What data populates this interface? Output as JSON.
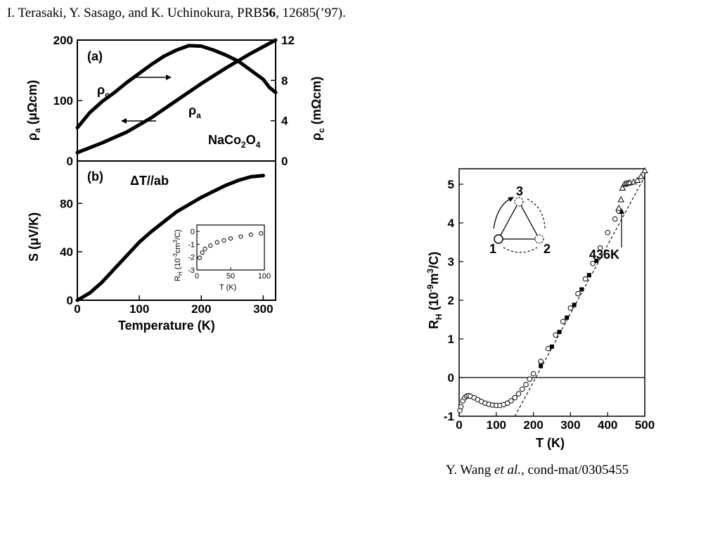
{
  "captions": {
    "top": {
      "authors": "I. Terasaki, Y. Sasago, and K. Uchinokura,  PRB",
      "volume": "56",
      "pages": ", 12685(’97)."
    },
    "right": {
      "author": "Y. Wang ",
      "etal": "et al.",
      "ref": ", cond-mat/0305455"
    }
  },
  "colors": {
    "ink": "#000000",
    "background": "#ffffff"
  },
  "chart_data": [
    {
      "id": "a",
      "type": "line",
      "panel_label": "(a)",
      "compound": "NaCo2O4",
      "xlim": [
        0,
        320
      ],
      "ylim_left": [
        0,
        200
      ],
      "ylim_right": [
        0,
        12
      ],
      "left_ticks": [
        "0",
        "100",
        "200"
      ],
      "right_ticks": [
        "0",
        "4",
        "8",
        "12"
      ],
      "ylabel_left": "ρa (μΩcm)",
      "ylabel_right": "ρc (mΩcm)",
      "series": [
        {
          "name": "ρa",
          "axis": "left",
          "x": [
            0,
            40,
            80,
            120,
            160,
            200,
            240,
            280,
            320
          ],
          "y": [
            14,
            30,
            48,
            72,
            100,
            128,
            154,
            178,
            200
          ]
        },
        {
          "name": "ρc",
          "axis": "right",
          "x": [
            0,
            20,
            40,
            60,
            80,
            100,
            120,
            140,
            160,
            180,
            200,
            220,
            240,
            260,
            280,
            300,
            310,
            320
          ],
          "y": [
            3.3,
            4.8,
            5.9,
            6.8,
            7.8,
            8.7,
            9.6,
            10.4,
            11.0,
            11.45,
            11.4,
            11.0,
            10.5,
            9.9,
            9.0,
            8.1,
            7.3,
            6.8
          ]
        }
      ]
    },
    {
      "id": "b",
      "type": "scatter",
      "panel_label": "(b)",
      "annotation": "ΔT//ab",
      "xlim": [
        0,
        320
      ],
      "ylim": [
        0,
        115
      ],
      "x_ticks": [
        "0",
        "100",
        "200",
        "300"
      ],
      "y_ticks": [
        "0",
        "40",
        "80"
      ],
      "xlabel": "Temperature (K)",
      "ylabel": "S (μV/K)",
      "series": [
        {
          "x": [
            0,
            20,
            40,
            60,
            80,
            100,
            120,
            140,
            160,
            180,
            200,
            220,
            240,
            260,
            280,
            300
          ],
          "y": [
            0,
            6,
            15,
            26,
            37,
            48,
            57,
            65,
            73,
            79,
            85,
            90,
            95,
            99,
            102,
            103
          ]
        }
      ],
      "inset": {
        "type": "scatter",
        "xlim": [
          0,
          100
        ],
        "ylim": [
          -3,
          0.5
        ],
        "x_ticks": [
          "0",
          "50",
          "100"
        ],
        "y_ticks": [
          "0",
          "-1",
          "-2",
          "-3"
        ],
        "xlabel": "T (K)",
        "ylabel": "RH (10-3cm3/C)",
        "x": [
          4,
          8,
          12,
          20,
          30,
          40,
          50,
          65,
          80,
          95
        ],
        "y": [
          -2.05,
          -1.65,
          -1.35,
          -1.1,
          -0.85,
          -0.7,
          -0.55,
          -0.4,
          -0.25,
          -0.15
        ]
      }
    },
    {
      "id": "right",
      "type": "scatter",
      "xlim": [
        0,
        500
      ],
      "ylim": [
        -1,
        5.4
      ],
      "x_ticks": [
        "0",
        "100",
        "200",
        "300",
        "400",
        "500"
      ],
      "y_ticks": [
        "-1",
        "0",
        "1",
        "2",
        "3",
        "4",
        "5"
      ],
      "xlabel": "T (K)",
      "ylabel": "RH (10-9m3/C)",
      "annotation": "436K",
      "inset_labels": [
        "1",
        "2",
        "3"
      ],
      "series": [
        {
          "marker": "open-circle",
          "x": [
            2,
            5,
            10,
            15,
            20,
            25,
            30,
            40,
            50,
            60,
            70,
            80,
            90,
            100,
            110,
            120,
            130,
            140,
            150,
            160,
            170,
            180,
            190,
            200,
            220,
            240,
            260,
            280,
            300,
            320,
            340,
            360,
            380,
            400,
            420,
            430
          ],
          "y": [
            -0.85,
            -0.75,
            -0.6,
            -0.52,
            -0.48,
            -0.47,
            -0.48,
            -0.52,
            -0.57,
            -0.62,
            -0.66,
            -0.69,
            -0.71,
            -0.72,
            -0.72,
            -0.7,
            -0.66,
            -0.6,
            -0.52,
            -0.42,
            -0.3,
            -0.18,
            -0.04,
            0.1,
            0.42,
            0.75,
            1.1,
            1.45,
            1.8,
            2.17,
            2.55,
            2.95,
            3.35,
            3.75,
            4.1,
            4.3
          ]
        },
        {
          "marker": "filled-square",
          "x": [
            220,
            250,
            270,
            290,
            310,
            330,
            350,
            370
          ],
          "y": [
            0.3,
            0.8,
            1.18,
            1.55,
            1.88,
            2.28,
            2.65,
            3.02
          ]
        },
        {
          "marker": "open-triangle",
          "x": [
            430,
            436,
            440,
            445,
            450,
            455,
            460,
            470,
            480,
            490,
            500
          ],
          "y": [
            4.38,
            4.6,
            4.9,
            5.0,
            5.02,
            5.03,
            5.04,
            5.06,
            5.1,
            5.2,
            5.35
          ]
        },
        {
          "marker": "dashed-line",
          "x": [
            150,
            500
          ],
          "y": [
            -1,
            5.2
          ]
        }
      ]
    }
  ]
}
